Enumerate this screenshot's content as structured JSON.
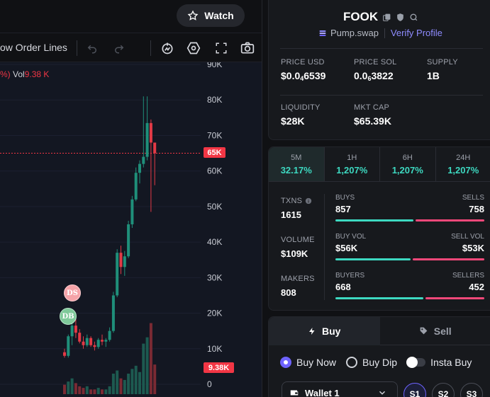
{
  "header": {
    "watch_label": "Watch"
  },
  "toolbar": {
    "order_lines_label": "ow Order Lines"
  },
  "chart": {
    "legend_prefix": "%)",
    "vol_label": "Vol",
    "vol_value": "9.38 K",
    "price_tag": "65K",
    "volume_tag": "9.38K",
    "markers": {
      "ds": "DS",
      "db": "DB"
    },
    "colors": {
      "up": "#1f8f7a",
      "down": "#e23a46",
      "up_vol": "#1d5a50",
      "down_vol": "#7a2a33",
      "price_line": "#f23645"
    }
  },
  "chart_data": {
    "type": "candlestick",
    "y_ticks": [
      "90K",
      "80K",
      "70K",
      "60K",
      "50K",
      "40K",
      "30K",
      "20K",
      "10K",
      "0"
    ],
    "ylim": [
      0,
      90
    ],
    "last_price": 65,
    "last_volume": 9.38,
    "candles": [
      {
        "o": 9,
        "h": 10,
        "l": 7.5,
        "c": 8
      },
      {
        "o": 8,
        "h": 14,
        "l": 7.5,
        "c": 13.5
      },
      {
        "o": 13.5,
        "h": 17.5,
        "l": 11,
        "c": 16.5
      },
      {
        "o": 16.5,
        "h": 19,
        "l": 13,
        "c": 14.5
      },
      {
        "o": 14.5,
        "h": 15.5,
        "l": 11.5,
        "c": 12
      },
      {
        "o": 12,
        "h": 13.5,
        "l": 10,
        "c": 11
      },
      {
        "o": 11,
        "h": 14,
        "l": 10.5,
        "c": 13
      },
      {
        "o": 13,
        "h": 13.5,
        "l": 10.5,
        "c": 11
      },
      {
        "o": 11,
        "h": 12,
        "l": 9.5,
        "c": 10.5
      },
      {
        "o": 10.5,
        "h": 13,
        "l": 10,
        "c": 12.5
      },
      {
        "o": 12.5,
        "h": 14,
        "l": 11,
        "c": 12
      },
      {
        "o": 12,
        "h": 13,
        "l": 10.5,
        "c": 12.5
      },
      {
        "o": 12.5,
        "h": 16,
        "l": 12,
        "c": 15
      },
      {
        "o": 15,
        "h": 26,
        "l": 14.5,
        "c": 25
      },
      {
        "o": 25,
        "h": 38,
        "l": 24.5,
        "c": 37
      },
      {
        "o": 37,
        "h": 39,
        "l": 31,
        "c": 33
      },
      {
        "o": 33,
        "h": 37.5,
        "l": 30.5,
        "c": 36
      },
      {
        "o": 36,
        "h": 46,
        "l": 35.5,
        "c": 45
      },
      {
        "o": 45,
        "h": 53,
        "l": 44,
        "c": 52
      },
      {
        "o": 52,
        "h": 61,
        "l": 51.5,
        "c": 59.5
      },
      {
        "o": 59.5,
        "h": 63,
        "l": 56.5,
        "c": 62
      },
      {
        "o": 62,
        "h": 81,
        "l": 61,
        "c": 64
      },
      {
        "o": 64,
        "h": 81,
        "l": 63,
        "c": 73.5
      },
      {
        "o": 73.5,
        "h": 74.5,
        "l": 48.5,
        "c": 68
      },
      {
        "o": 68,
        "h": 68,
        "l": 56,
        "c": 65
      }
    ],
    "volumes": [
      3,
      4,
      5,
      3.5,
      2.5,
      2,
      2.5,
      1.5,
      1.5,
      2,
      1.5,
      1.5,
      2.5,
      6.5,
      7.5,
      5,
      4.5,
      6.5,
      8,
      9,
      7,
      16,
      18,
      22.5,
      9.38
    ]
  },
  "token": {
    "name": "FOOK",
    "dex": "Pump.swap",
    "verify_label": "Verify Profile",
    "stats": [
      {
        "k": "PRICE USD",
        "v": "$0.0",
        "sub": "4",
        "v2": "6539"
      },
      {
        "k": "PRICE SOL",
        "v": "0.0",
        "sub": "6",
        "v2": "3822"
      },
      {
        "k": "SUPPLY",
        "v": "1B",
        "sub": "",
        "v2": ""
      },
      {
        "k": "LIQUIDITY",
        "v": "$28K",
        "sub": "",
        "v2": ""
      },
      {
        "k": "MKT CAP",
        "v": "$65.39K",
        "sub": "",
        "v2": ""
      }
    ]
  },
  "timeframes": [
    {
      "label": "5M",
      "value": "32.17%"
    },
    {
      "label": "1H",
      "value": "1,207%"
    },
    {
      "label": "6H",
      "value": "1,207%"
    },
    {
      "label": "24H",
      "value": "1,207%"
    }
  ],
  "metrics": [
    {
      "k": "TXNS",
      "v": "1615"
    },
    {
      "k": "VOLUME",
      "v": "$109K"
    },
    {
      "k": "MAKERS",
      "v": "808"
    }
  ],
  "splits": [
    {
      "lk": "BUYS",
      "rk": "SELLS",
      "lv": "857",
      "rv": "758",
      "ratio": 0.53
    },
    {
      "lk": "BUY VOL",
      "rk": "SELL VOL",
      "lv": "$56K",
      "rv": "$53K",
      "ratio": 0.51
    },
    {
      "lk": "BUYERS",
      "rk": "SELLERS",
      "lv": "668",
      "rv": "452",
      "ratio": 0.6
    }
  ],
  "trade": {
    "buy_tab": "Buy",
    "sell_tab": "Sell",
    "options": [
      "Buy Now",
      "Buy Dip",
      "Insta Buy"
    ],
    "wallet": "Wallet 1",
    "slots": [
      "S1",
      "S2",
      "S3"
    ]
  }
}
